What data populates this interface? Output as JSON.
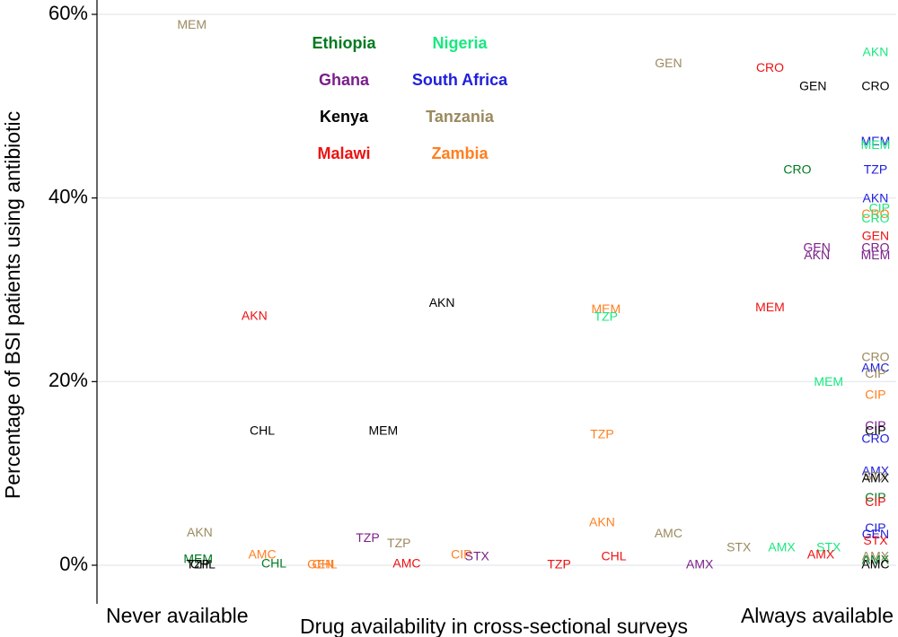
{
  "chart_data": {
    "type": "scatter",
    "title": "",
    "xlabel": "Drug availability in cross-sectional surveys",
    "ylabel": "Percentage of BSI patients using antibiotic",
    "x_endpoint_labels": {
      "left": "Never available",
      "right": "Always available"
    },
    "xlim": [
      0,
      1
    ],
    "ylim": [
      0,
      61
    ],
    "y_ticks": [
      {
        "value": 0,
        "label": "0%"
      },
      {
        "value": 20,
        "label": "20%"
      },
      {
        "value": 40,
        "label": "40%"
      },
      {
        "value": 60,
        "label": "60%"
      }
    ],
    "grid": "horizontal",
    "legend_position": "top-center",
    "country_colors": {
      "Ethiopia": "#007a1f",
      "Nigeria": "#19e87f",
      "Ghana": "#7a1f8a",
      "South Africa": "#1f1fdc",
      "Kenya": "#000000",
      "Tanzania": "#9b8a5f",
      "Malawi": "#ee1111",
      "Zambia": "#ff7f1f"
    },
    "legend": [
      [
        "Ethiopia",
        "Nigeria"
      ],
      [
        "Ghana",
        "South Africa"
      ],
      [
        "Kenya",
        "Tanzania"
      ],
      [
        "Malawi",
        "Zambia"
      ]
    ],
    "points": [
      {
        "label": "MEM",
        "country": "Tanzania",
        "x": 0.11,
        "y": 58.8
      },
      {
        "label": "GEN",
        "country": "Tanzania",
        "x": 0.72,
        "y": 54.6
      },
      {
        "label": "CRO",
        "country": "Malawi",
        "x": 0.85,
        "y": 54.1
      },
      {
        "label": "GEN",
        "country": "Kenya",
        "x": 0.905,
        "y": 52.1
      },
      {
        "label": "AKN",
        "country": "Nigeria",
        "x": 0.985,
        "y": 55.8
      },
      {
        "label": "CRO",
        "country": "Kenya",
        "x": 0.985,
        "y": 52.1
      },
      {
        "label": "MEM",
        "country": "South Africa",
        "x": 0.985,
        "y": 46.1
      },
      {
        "label": "MEM",
        "country": "Nigeria",
        "x": 0.985,
        "y": 45.7
      },
      {
        "label": "CRO",
        "country": "Ethiopia",
        "x": 0.885,
        "y": 43.0
      },
      {
        "label": "TZP",
        "country": "South Africa",
        "x": 0.985,
        "y": 43.0
      },
      {
        "label": "AKN",
        "country": "South Africa",
        "x": 0.985,
        "y": 39.9
      },
      {
        "label": "CIP",
        "country": "Nigeria",
        "x": 0.99,
        "y": 38.8
      },
      {
        "label": "CRO",
        "country": "Zambia",
        "x": 0.985,
        "y": 38.2
      },
      {
        "label": "CRO",
        "country": "Nigeria",
        "x": 0.985,
        "y": 37.7
      },
      {
        "label": "GEN",
        "country": "Malawi",
        "x": 0.985,
        "y": 35.8
      },
      {
        "label": "GEN",
        "country": "Ghana",
        "x": 0.91,
        "y": 34.5
      },
      {
        "label": "CRO",
        "country": "Ghana",
        "x": 0.985,
        "y": 34.5
      },
      {
        "label": "AKN",
        "country": "Ghana",
        "x": 0.91,
        "y": 33.7
      },
      {
        "label": "MEM",
        "country": "Ghana",
        "x": 0.985,
        "y": 33.7
      },
      {
        "label": "AKN",
        "country": "Kenya",
        "x": 0.43,
        "y": 28.5
      },
      {
        "label": "MEM",
        "country": "Malawi",
        "x": 0.85,
        "y": 28.0
      },
      {
        "label": "MEM",
        "country": "Zambia",
        "x": 0.64,
        "y": 27.8
      },
      {
        "label": "TZP",
        "country": "Nigeria",
        "x": 0.64,
        "y": 27.0
      },
      {
        "label": "AKN",
        "country": "Malawi",
        "x": 0.19,
        "y": 27.1
      },
      {
        "label": "CRO",
        "country": "Tanzania",
        "x": 0.985,
        "y": 22.6
      },
      {
        "label": "AMC",
        "country": "South Africa",
        "x": 0.985,
        "y": 21.4
      },
      {
        "label": "CIP",
        "country": "Tanzania",
        "x": 0.985,
        "y": 20.8
      },
      {
        "label": "MEM",
        "country": "Nigeria",
        "x": 0.925,
        "y": 19.9
      },
      {
        "label": "CIP",
        "country": "Zambia",
        "x": 0.985,
        "y": 18.5
      },
      {
        "label": "CIP",
        "country": "Ghana",
        "x": 0.985,
        "y": 15.1
      },
      {
        "label": "CHL",
        "country": "Kenya",
        "x": 0.2,
        "y": 14.6
      },
      {
        "label": "MEM",
        "country": "Kenya",
        "x": 0.355,
        "y": 14.6
      },
      {
        "label": "CIP",
        "country": "Kenya",
        "x": 0.985,
        "y": 14.6
      },
      {
        "label": "TZP",
        "country": "Zambia",
        "x": 0.635,
        "y": 14.2
      },
      {
        "label": "CRO",
        "country": "South Africa",
        "x": 0.985,
        "y": 13.7
      },
      {
        "label": "AMX",
        "country": "South Africa",
        "x": 0.985,
        "y": 10.2
      },
      {
        "label": "STX",
        "country": "Tanzania",
        "x": 0.985,
        "y": 9.6
      },
      {
        "label": "AMX",
        "country": "Kenya",
        "x": 0.985,
        "y": 9.4
      },
      {
        "label": "CIP",
        "country": "Ethiopia",
        "x": 0.985,
        "y": 7.3
      },
      {
        "label": "CIP",
        "country": "Malawi",
        "x": 0.985,
        "y": 6.8
      },
      {
        "label": "AKN",
        "country": "Zambia",
        "x": 0.635,
        "y": 4.6
      },
      {
        "label": "CIP",
        "country": "South Africa",
        "x": 0.985,
        "y": 4.0
      },
      {
        "label": "AKN",
        "country": "Tanzania",
        "x": 0.12,
        "y": 3.5
      },
      {
        "label": "AMC",
        "country": "Tanzania",
        "x": 0.72,
        "y": 3.4
      },
      {
        "label": "GEN",
        "country": "South Africa",
        "x": 0.985,
        "y": 3.3
      },
      {
        "label": "TZP",
        "country": "Ghana",
        "x": 0.335,
        "y": 2.9
      },
      {
        "label": "STX",
        "country": "Malawi",
        "x": 0.985,
        "y": 2.6
      },
      {
        "label": "TZP",
        "country": "Tanzania",
        "x": 0.375,
        "y": 2.3
      },
      {
        "label": "STX",
        "country": "Tanzania",
        "x": 0.81,
        "y": 1.9
      },
      {
        "label": "AMX",
        "country": "Nigeria",
        "x": 0.865,
        "y": 1.9
      },
      {
        "label": "STX",
        "country": "Nigeria",
        "x": 0.925,
        "y": 1.9
      },
      {
        "label": "AMX",
        "country": "Malawi",
        "x": 0.915,
        "y": 1.1
      },
      {
        "label": "AMC",
        "country": "Zambia",
        "x": 0.2,
        "y": 1.1
      },
      {
        "label": "CIP",
        "country": "Zambia",
        "x": 0.455,
        "y": 1.1
      },
      {
        "label": "STX",
        "country": "Ghana",
        "x": 0.475,
        "y": 0.9
      },
      {
        "label": "CHL",
        "country": "Malawi",
        "x": 0.65,
        "y": 0.9
      },
      {
        "label": "MEM",
        "country": "Ethiopia",
        "x": 0.118,
        "y": 0.6
      },
      {
        "label": "AMX",
        "country": "Tanzania",
        "x": 0.985,
        "y": 0.9
      },
      {
        "label": "AMX",
        "country": "Ethiopia",
        "x": 0.985,
        "y": 0.5
      },
      {
        "label": "CHL",
        "country": "Ethiopia",
        "x": 0.215,
        "y": 0.1
      },
      {
        "label": "AMC",
        "country": "Malawi",
        "x": 0.385,
        "y": 0.1
      },
      {
        "label": "GEN",
        "country": "Zambia",
        "x": 0.275,
        "y": 0.0
      },
      {
        "label": "CHL",
        "country": "Zambia",
        "x": 0.28,
        "y": 0.0
      },
      {
        "label": "TZP",
        "country": "Malawi",
        "x": 0.58,
        "y": 0.0
      },
      {
        "label": "AMX",
        "country": "Ghana",
        "x": 0.76,
        "y": 0.0
      },
      {
        "label": "AMC",
        "country": "Kenya",
        "x": 0.985,
        "y": 0.0
      },
      {
        "label": "TZP",
        "country": "Kenya",
        "x": 0.118,
        "y": 0.0
      },
      {
        "label": "CHL",
        "country": "Kenya",
        "x": 0.124,
        "y": 0.0
      }
    ]
  }
}
